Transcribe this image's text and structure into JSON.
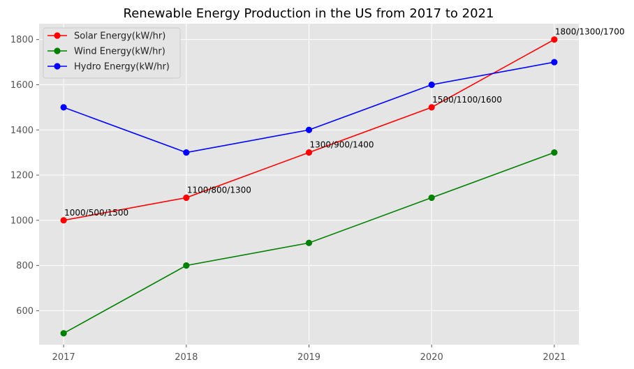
{
  "chart_data": {
    "type": "line",
    "title": "Renewable Energy Production in the US from 2017 to 2021",
    "xlabel": "",
    "ylabel": "",
    "x": [
      "2017",
      "2018",
      "2019",
      "2020",
      "2021"
    ],
    "xlim": [
      2016.8,
      2021.2
    ],
    "ylim": [
      450,
      1870
    ],
    "yticks": [
      600,
      800,
      1000,
      1200,
      1400,
      1600,
      1800
    ],
    "grid": true,
    "legend_position": "upper-left",
    "series": [
      {
        "name": "Solar Energy(kW/hr)",
        "color": "#ff0000",
        "values": [
          1000,
          1100,
          1300,
          1500,
          1800
        ]
      },
      {
        "name": "Wind Energy(kW/hr)",
        "color": "#008000",
        "values": [
          500,
          800,
          900,
          1100,
          1300
        ]
      },
      {
        "name": "Hydro Energy(kW/hr)",
        "color": "#0000ff",
        "values": [
          1500,
          1300,
          1400,
          1600,
          1700
        ]
      }
    ],
    "annotations": [
      "1000/500/1500",
      "1100/800/1300",
      "1300/900/1400",
      "1500/1100/1600",
      "1800/1300/1700"
    ]
  }
}
